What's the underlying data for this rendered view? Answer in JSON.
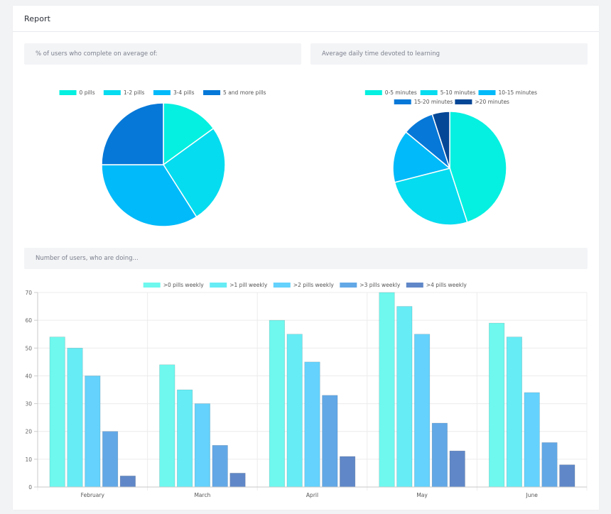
{
  "card": {
    "title": "Report"
  },
  "sections": {
    "pills_title": "% of users who complete on average of:",
    "time_title": "Average daily time devoted to learning",
    "users_title": "Number of users, who are doing..."
  },
  "chart_data": [
    {
      "type": "pie",
      "labels": [
        "0 pills",
        "1-2 pills",
        "3-4 pills",
        "5 and more pills"
      ],
      "values": [
        15,
        26,
        34,
        25
      ],
      "colors": [
        "#05f0e0",
        "#06dcef",
        "#01baf9",
        "#0678d8"
      ]
    },
    {
      "type": "pie",
      "labels": [
        "0-5 minutes",
        "5-10 minutes",
        "10-15 minutes",
        "15-20 minutes",
        ">20 minutes"
      ],
      "values": [
        45,
        26,
        15,
        9,
        5
      ],
      "colors": [
        "#05f0e0",
        "#06dcef",
        "#01baf9",
        "#0678d8",
        "#044797"
      ]
    },
    {
      "type": "bar",
      "categories": [
        "February",
        "March",
        "April",
        "May",
        "June"
      ],
      "series": [
        {
          "name": ">0 pills weekly",
          "values": [
            54,
            44,
            60,
            70,
            59
          ],
          "color": "#6ef8ee"
        },
        {
          "name": ">1 pill weekly",
          "values": [
            50,
            35,
            55,
            65,
            54
          ],
          "color": "#66ecf5"
        },
        {
          "name": ">2 pills weekly",
          "values": [
            40,
            30,
            45,
            55,
            34
          ],
          "color": "#64d2fc"
        },
        {
          "name": ">3 pills weekly",
          "values": [
            20,
            15,
            33,
            23,
            16
          ],
          "color": "#62a8e6"
        },
        {
          "name": ">4 pills weekly",
          "values": [
            4,
            5,
            11,
            13,
            8
          ],
          "color": "#6088c8"
        }
      ],
      "ylim": [
        0,
        70
      ],
      "yticks": [
        0,
        10,
        20,
        30,
        40,
        50,
        60,
        70
      ],
      "grid": true,
      "legend": "top"
    }
  ]
}
